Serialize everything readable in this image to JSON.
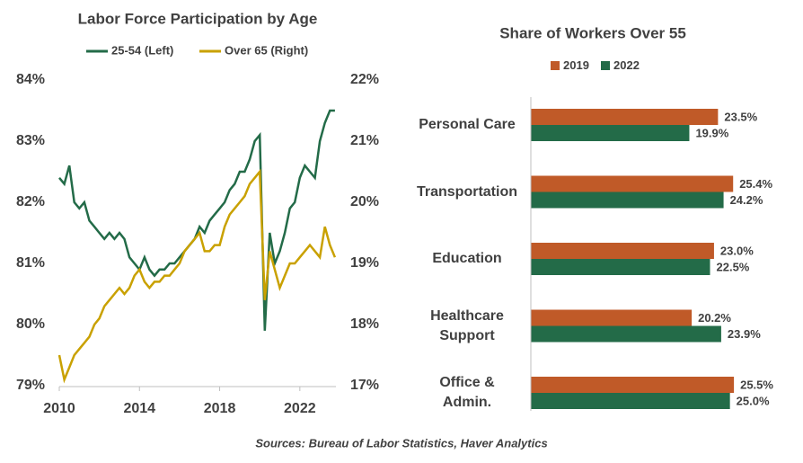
{
  "chart_data": [
    {
      "type": "line",
      "title": "Labor Force Participation  by Age",
      "x": [
        2010,
        2010.25,
        2010.5,
        2010.75,
        2011,
        2011.25,
        2011.5,
        2011.75,
        2012,
        2012.25,
        2012.5,
        2012.75,
        2013,
        2013.25,
        2013.5,
        2013.75,
        2014,
        2014.25,
        2014.5,
        2014.75,
        2015,
        2015.25,
        2015.5,
        2015.75,
        2016,
        2016.25,
        2016.5,
        2016.75,
        2017,
        2017.25,
        2017.5,
        2017.75,
        2018,
        2018.25,
        2018.5,
        2018.75,
        2019,
        2019.25,
        2019.5,
        2019.75,
        2020,
        2020.25,
        2020.5,
        2020.75,
        2021,
        2021.25,
        2021.5,
        2021.75,
        2022,
        2022.25,
        2022.5,
        2022.75,
        2023,
        2023.25,
        2023.5,
        2023.75
      ],
      "series": [
        {
          "name": "25-54 (Left)",
          "color": "#236b48",
          "values": [
            82.4,
            82.3,
            82.6,
            82.0,
            81.9,
            82.0,
            81.7,
            81.6,
            81.5,
            81.4,
            81.5,
            81.4,
            81.5,
            81.4,
            81.1,
            81.0,
            80.9,
            81.1,
            80.9,
            80.8,
            80.9,
            80.9,
            81.0,
            81.0,
            81.1,
            81.2,
            81.3,
            81.4,
            81.6,
            81.5,
            81.7,
            81.8,
            81.9,
            82.0,
            82.2,
            82.3,
            82.5,
            82.5,
            82.7,
            83.0,
            83.1,
            79.9,
            81.5,
            81.0,
            81.2,
            81.5,
            81.9,
            82.0,
            82.4,
            82.6,
            82.5,
            82.4,
            83.0,
            83.3,
            83.5,
            83.5
          ]
        },
        {
          "name": "Over 65 (Right)",
          "color": "#c9a100",
          "axis": "y2",
          "values": [
            17.5,
            17.1,
            17.3,
            17.5,
            17.6,
            17.7,
            17.8,
            18.0,
            18.1,
            18.3,
            18.4,
            18.5,
            18.6,
            18.5,
            18.6,
            18.8,
            18.9,
            18.7,
            18.6,
            18.7,
            18.7,
            18.8,
            18.8,
            18.9,
            19.0,
            19.2,
            19.3,
            19.4,
            19.5,
            19.2,
            19.2,
            19.3,
            19.3,
            19.6,
            19.8,
            19.9,
            20.0,
            20.1,
            20.3,
            20.4,
            20.5,
            18.4,
            19.2,
            18.9,
            18.6,
            18.8,
            19.0,
            19.0,
            19.1,
            19.2,
            19.3,
            19.2,
            19.1,
            19.6,
            19.3,
            19.1
          ]
        }
      ],
      "xlim": [
        2010,
        2023.8
      ],
      "xticks": [
        2010,
        2014,
        2018,
        2022
      ],
      "ylim": [
        79,
        84
      ],
      "yticks": [
        {
          "value": 79,
          "label": "79%"
        },
        {
          "value": 80,
          "label": "80%"
        },
        {
          "value": 81,
          "label": "81%"
        },
        {
          "value": 82,
          "label": "82%"
        },
        {
          "value": 83,
          "label": "83%"
        },
        {
          "value": 84,
          "label": "84%"
        }
      ],
      "y2lim": [
        17,
        22
      ],
      "y2ticks": [
        {
          "value": 17,
          "label": "17%"
        },
        {
          "value": 18,
          "label": "18%"
        },
        {
          "value": 19,
          "label": "19%"
        },
        {
          "value": 20,
          "label": "20%"
        },
        {
          "value": 21,
          "label": "21%"
        },
        {
          "value": 22,
          "label": "22%"
        }
      ],
      "grid": false
    },
    {
      "type": "hbar",
      "title": "Share of Workers Over 55",
      "categories": [
        "Personal Care",
        "Transportation",
        "Education",
        "Healthcare\nSupport",
        "Office &\nAdmin."
      ],
      "series": [
        {
          "name": "2019",
          "color": "#c05a28",
          "values": [
            23.5,
            25.4,
            23.0,
            20.2,
            25.5
          ],
          "value_labels": [
            "23.5%",
            "25.4%",
            "23.0%",
            "20.2%",
            "25.5%"
          ]
        },
        {
          "name": "2022",
          "color": "#236b48",
          "values": [
            19.9,
            24.2,
            22.5,
            23.9,
            25.0
          ],
          "value_labels": [
            "19.9%",
            "24.2%",
            "22.5%",
            "23.9%",
            "25.0%"
          ]
        }
      ],
      "xlim": [
        0,
        30
      ]
    }
  ],
  "source": "Sources: Bureau of Labor Statistics, Haver Analytics"
}
